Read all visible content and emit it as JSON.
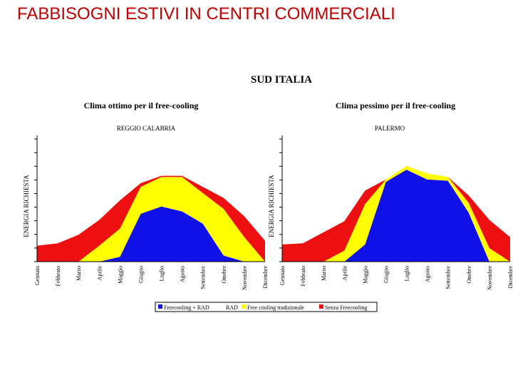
{
  "slide": {
    "title": "FABBISOGNI ESTIVI IN CENTRI COMMERCIALI"
  },
  "figure": {
    "title": "SUD ITALIA"
  },
  "colors": {
    "blue": "#1010e8",
    "yellow": "#ffff00",
    "red": "#ee1010",
    "axis": "#000000"
  },
  "chart_data": [
    {
      "type": "area",
      "title": "Clima ottimo per il free-cooling",
      "subtitle": "REGGIO CALABRIA",
      "ylabel": "ENERGIA RICHIESTA",
      "xlabel": "",
      "ylim": [
        0,
        10
      ],
      "categories": [
        "Gennaio",
        "Febbraio",
        "Marzo",
        "Aprile",
        "Maggio",
        "Giugno",
        "Luglio",
        "Agosto",
        "Settembre",
        "Ottobre",
        "Novembre",
        "Dicembre"
      ],
      "series": [
        {
          "name": "Freecooling + RAD",
          "color": "blue",
          "values": [
            0,
            0,
            0,
            0,
            0.4,
            3.9,
            4.5,
            4.1,
            3.1,
            0.5,
            0,
            0
          ]
        },
        {
          "name": "Free cooling tradizionale",
          "color": "yellow",
          "values": [
            0,
            0,
            0,
            1.3,
            2.3,
            2.2,
            2.4,
            2.8,
            2.5,
            3.8,
            2.0,
            0
          ]
        },
        {
          "name": "Senza Freecooling",
          "color": "red",
          "values": [
            1.3,
            1.5,
            2.2,
            2.1,
            2.3,
            0.3,
            0.1,
            0.1,
            0.5,
            0.9,
            1.7,
            1.7
          ]
        }
      ]
    },
    {
      "type": "area",
      "title": "Clima pessimo per il free-cooling",
      "subtitle": "PALERMO",
      "ylabel": "ENERGIA RICHIESTA",
      "xlabel": "",
      "ylim": [
        0,
        10
      ],
      "categories": [
        "Gennaio",
        "Febbraio",
        "Marzo",
        "Aprile",
        "Maggio",
        "Giugno",
        "Luglio",
        "Agosto",
        "Settembre",
        "Ottobre",
        "Novembre",
        "Dicembre"
      ],
      "series": [
        {
          "name": "Freecooling + RAD",
          "color": "blue",
          "values": [
            0,
            0,
            0,
            0,
            1.4,
            6.5,
            7.5,
            6.7,
            6.6,
            4.0,
            0,
            0
          ]
        },
        {
          "name": "Free cooling tradizionale",
          "color": "yellow",
          "values": [
            0,
            0,
            0,
            0.9,
            3.3,
            0.2,
            0.3,
            0.5,
            0.3,
            0.8,
            1.1,
            0
          ]
        },
        {
          "name": "Senza Freecooling",
          "color": "red",
          "values": [
            1.4,
            1.5,
            2.4,
            2.4,
            1.1,
            0,
            0,
            0,
            0,
            0.6,
            2.3,
            2.0
          ]
        }
      ]
    }
  ],
  "legend": {
    "items": [
      {
        "label": "Freecooling + RAD",
        "color": "blue"
      },
      {
        "label": "RAD",
        "color": ""
      },
      {
        "label": "Free cooling tradizionale",
        "color": "yellow"
      },
      {
        "label": "Senza Freecooling",
        "color": "red"
      }
    ]
  }
}
